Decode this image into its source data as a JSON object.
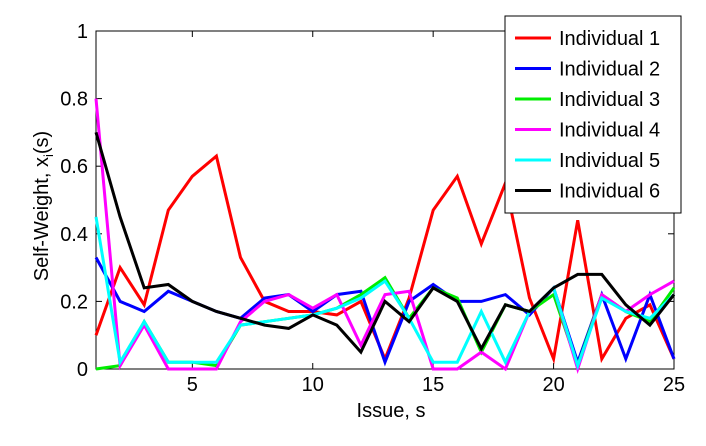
{
  "chart_data": {
    "type": "line",
    "title": "",
    "xlabel": "Issue, s",
    "ylabel_main": "Self-Weight, x",
    "ylabel_sub": "i",
    "ylabel_tail": "(s)",
    "xlim": [
      1,
      25
    ],
    "ylim": [
      0,
      1
    ],
    "xticks": [
      5,
      10,
      15,
      20,
      25
    ],
    "yticks": [
      0,
      0.2,
      0.4,
      0.6,
      0.8,
      1
    ],
    "ytick_labels": [
      "0",
      "0.2",
      "0.4",
      "0.6",
      "0.8",
      "1"
    ],
    "grid": false,
    "legend_position": "top-right",
    "x": [
      1,
      2,
      3,
      4,
      5,
      6,
      7,
      8,
      9,
      10,
      11,
      12,
      13,
      14,
      15,
      16,
      17,
      18,
      19,
      20,
      21,
      22,
      23,
      24,
      25
    ],
    "series": [
      {
        "name": "Individual 1",
        "color": "#ff0000",
        "values": [
          0.1,
          0.3,
          0.19,
          0.47,
          0.57,
          0.63,
          0.33,
          0.2,
          0.17,
          0.17,
          0.16,
          0.2,
          0.03,
          0.21,
          0.47,
          0.57,
          0.37,
          0.55,
          0.21,
          0.03,
          0.44,
          0.03,
          0.15,
          0.19,
          0.03
        ]
      },
      {
        "name": "Individual 2",
        "color": "#0000ff",
        "values": [
          0.33,
          0.2,
          0.17,
          0.23,
          0.2,
          0.17,
          0.15,
          0.21,
          0.22,
          0.17,
          0.22,
          0.23,
          0.02,
          0.2,
          0.25,
          0.2,
          0.2,
          0.22,
          0.16,
          0.24,
          0.02,
          0.22,
          0.03,
          0.22,
          0.03
        ]
      },
      {
        "name": "Individual 3",
        "color": "#00ee00",
        "values": [
          0.0,
          0.01,
          0.14,
          0.02,
          0.02,
          0.01,
          0.13,
          0.14,
          0.15,
          0.16,
          0.18,
          0.22,
          0.27,
          0.15,
          0.24,
          0.21,
          0.05,
          0.19,
          0.17,
          0.22,
          0.01,
          0.22,
          0.17,
          0.14,
          0.24
        ]
      },
      {
        "name": "Individual 4",
        "color": "#ff00ff",
        "values": [
          0.8,
          0.01,
          0.13,
          0.0,
          0.0,
          0.0,
          0.14,
          0.2,
          0.22,
          0.18,
          0.22,
          0.07,
          0.22,
          0.23,
          0.0,
          0.0,
          0.05,
          0.0,
          0.17,
          0.24,
          0.0,
          0.22,
          0.17,
          0.22,
          0.26
        ]
      },
      {
        "name": "Individual 5",
        "color": "#00ffff",
        "values": [
          0.45,
          0.02,
          0.14,
          0.02,
          0.02,
          0.02,
          0.13,
          0.14,
          0.15,
          0.16,
          0.18,
          0.21,
          0.26,
          0.15,
          0.02,
          0.02,
          0.17,
          0.02,
          0.17,
          0.24,
          0.01,
          0.21,
          0.17,
          0.15,
          0.22
        ]
      },
      {
        "name": "Individual 6",
        "color": "#000000",
        "values": [
          0.7,
          0.45,
          0.24,
          0.25,
          0.2,
          0.17,
          0.15,
          0.13,
          0.12,
          0.16,
          0.13,
          0.05,
          0.2,
          0.14,
          0.24,
          0.2,
          0.06,
          0.19,
          0.17,
          0.24,
          0.28,
          0.28,
          0.19,
          0.13,
          0.22
        ]
      }
    ]
  }
}
